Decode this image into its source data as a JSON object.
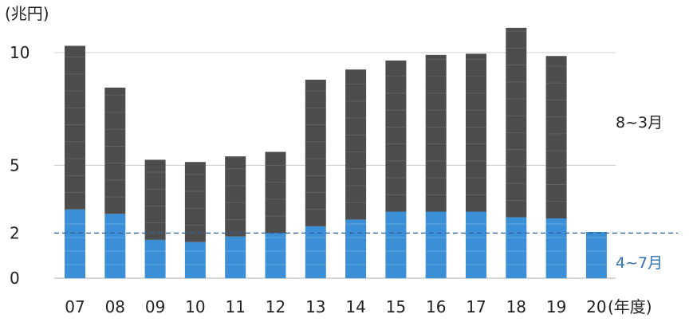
{
  "chart_data": {
    "type": "bar",
    "stacked": true,
    "y_unit_label": "(兆円)",
    "x_unit_label": "(年度)",
    "categories": [
      "07",
      "08",
      "09",
      "10",
      "11",
      "12",
      "13",
      "14",
      "15",
      "16",
      "17",
      "18",
      "19",
      "20"
    ],
    "series": [
      {
        "name": "4~7月",
        "color": "#3b8fd6",
        "values": [
          3.05,
          2.85,
          1.7,
          1.6,
          1.85,
          2.0,
          2.3,
          2.6,
          2.95,
          2.95,
          2.95,
          2.7,
          2.65,
          2.05
        ]
      },
      {
        "name": "8~3月",
        "color": "#4d4d4d",
        "values": [
          7.25,
          5.6,
          3.55,
          3.55,
          3.55,
          3.6,
          6.5,
          6.65,
          6.7,
          6.95,
          7.0,
          8.4,
          7.2,
          0
        ]
      }
    ],
    "yticks": [
      0,
      2,
      5,
      10
    ],
    "ylim": [
      0,
      10.6
    ],
    "grid": true,
    "reference_line": {
      "value": 2.0,
      "style": "dashed"
    }
  }
}
